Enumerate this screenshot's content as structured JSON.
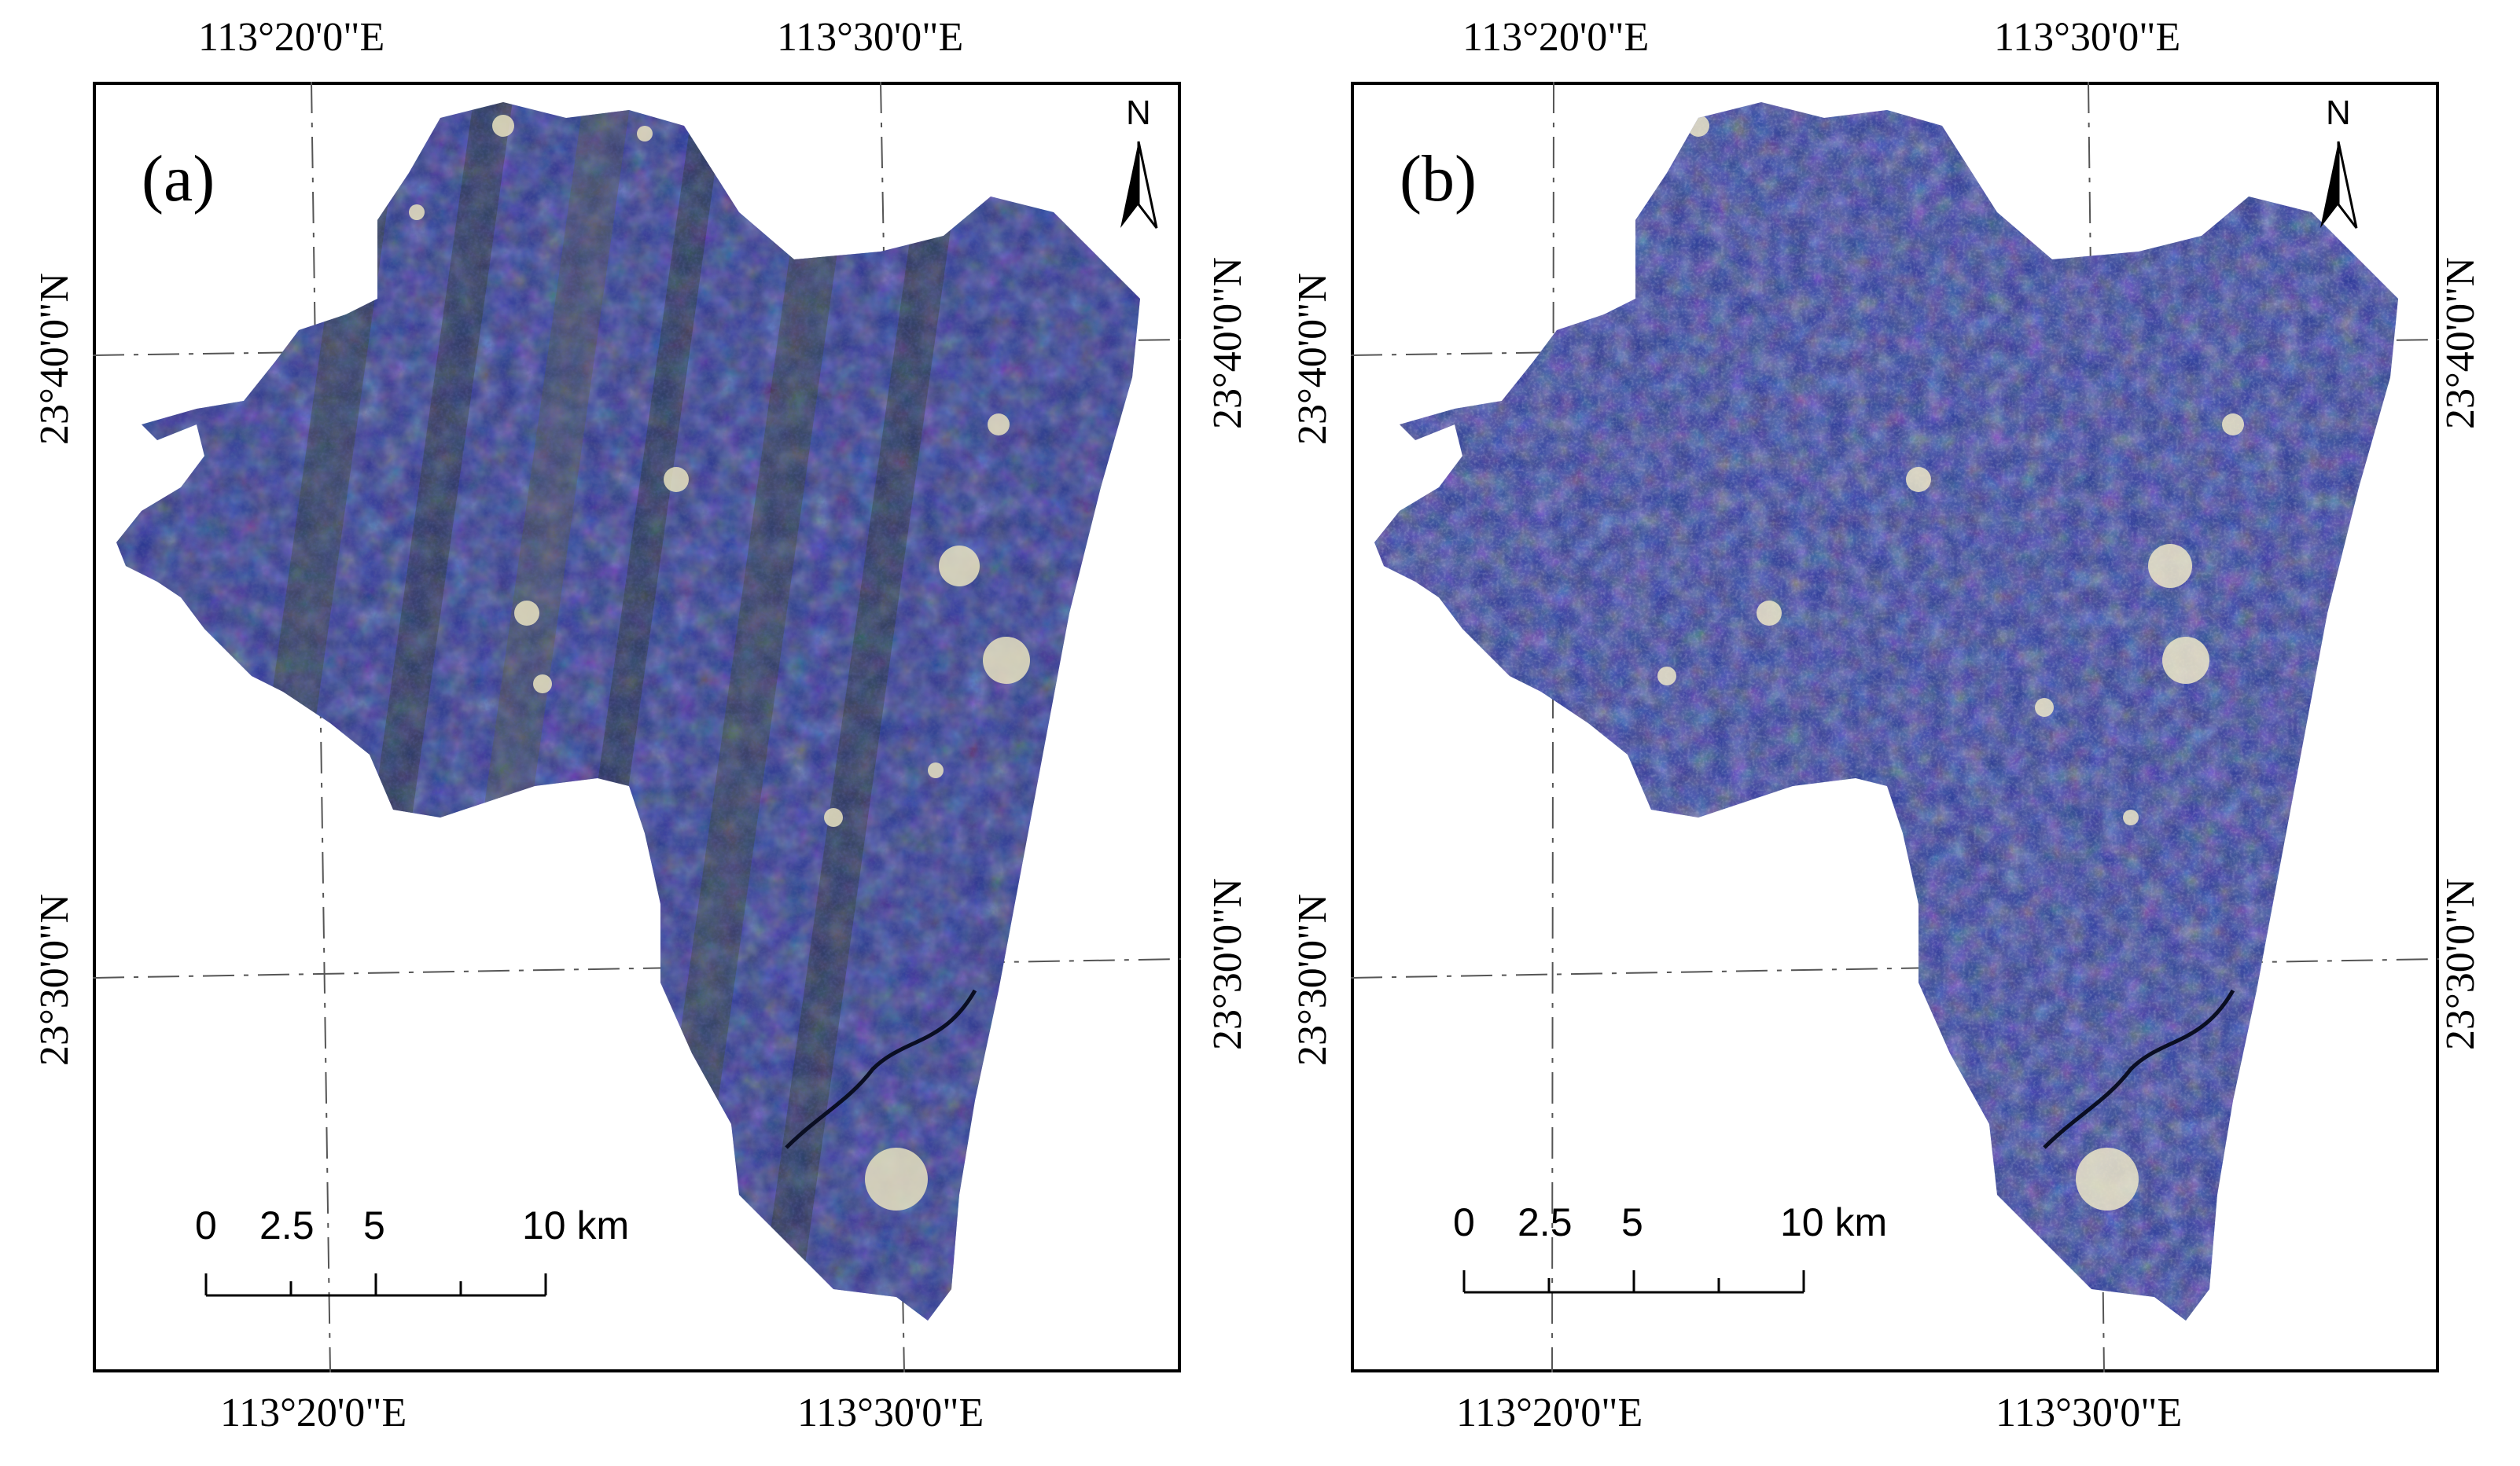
{
  "panels": [
    {
      "id": "a",
      "label": "(a)",
      "top_lon_labels": [
        "113°20'0\"E",
        "113°30'0\"E"
      ],
      "bottom_lon_labels": [
        "113°20'0\"E",
        "113°30'0\"E"
      ],
      "left_lat_labels": [
        "23°40'0\"N",
        "23°30'0\"N"
      ],
      "right_lat_labels": [
        "23°40'0\"N",
        "23°30'0\"N"
      ],
      "north_label": "N",
      "scale_ticks": [
        "0",
        "2.5",
        "5",
        "10 km"
      ]
    },
    {
      "id": "b",
      "label": "(b)",
      "top_lon_labels": [
        "113°20'0\"E",
        "113°30'0\"E"
      ],
      "bottom_lon_labels": [
        "113°20'0\"E",
        "113°30'0\"E"
      ],
      "left_lat_labels": [
        "23°40'0\"N",
        "23°30'0\"N"
      ],
      "right_lat_labels": [
        "23°40'0\"N",
        "23°30'0\"N"
      ],
      "north_label": "N",
      "scale_ticks": [
        "0",
        "2.5",
        "5",
        "10 km"
      ]
    }
  ],
  "colors": {
    "imagery_base": "#2a3a8c",
    "imagery_dark": "#141a3c",
    "imagery_highlight": "#d8d0b0",
    "imagery_green": "#3a4a28",
    "frame": "#000000"
  }
}
